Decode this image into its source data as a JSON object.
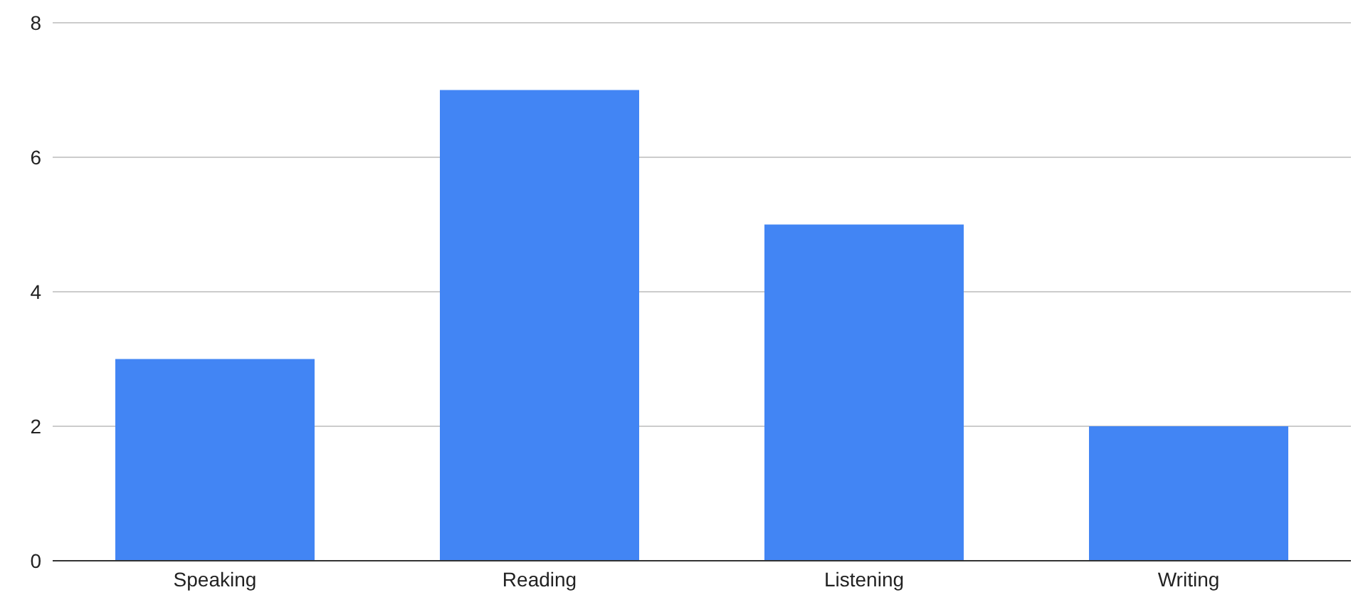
{
  "chart_data": {
    "type": "bar",
    "categories": [
      "Speaking",
      "Reading",
      "Listening",
      "Writing"
    ],
    "values": [
      3,
      7,
      5,
      2
    ],
    "color": "#4285f4",
    "ylim": [
      0,
      8
    ],
    "yticks": [
      0,
      2,
      4,
      6,
      8
    ],
    "grid": "y"
  }
}
